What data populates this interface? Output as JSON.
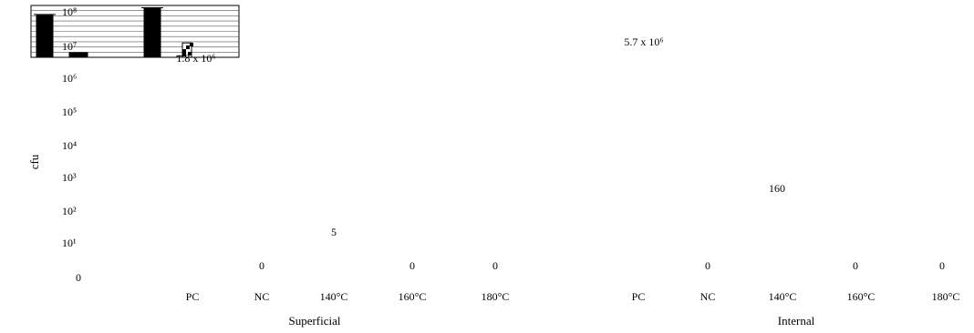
{
  "chart_data": {
    "type": "bar",
    "scale": "log",
    "ylabel": "cfu",
    "yticks": [
      "0",
      "10¹",
      "10²",
      "10³",
      "10⁴",
      "10⁵",
      "10⁶",
      "10⁷",
      "10⁸"
    ],
    "groups": [
      {
        "name": "Superficial",
        "categories": [
          "PC",
          "NC",
          "140°C",
          "160°C",
          "180°C"
        ]
      },
      {
        "name": "Internal",
        "categories": [
          "PC",
          "NC",
          "140°C",
          "160°C",
          "180°C"
        ]
      }
    ],
    "bars": [
      {
        "group": "Superficial",
        "category": "PC",
        "value": 66000000,
        "fill": "black"
      },
      {
        "group": "Superficial",
        "category": "NC",
        "value": 0,
        "fill": "black"
      },
      {
        "group": "Superficial",
        "category": "140°C",
        "value": 1800000,
        "fill": "white"
      },
      {
        "group": "Internal",
        "category": "PC",
        "value": 120000000,
        "fill": "black"
      },
      {
        "group": "Internal",
        "category": "NC",
        "value": 0,
        "fill": "black"
      },
      {
        "group": "Internal",
        "category": "140°C",
        "value": 5700000,
        "fill": "white"
      }
    ],
    "data_labels": [
      {
        "text": "0",
        "group": "Superficial",
        "category": "NC"
      },
      {
        "text": "5",
        "group": "Superficial",
        "category": "140°C"
      },
      {
        "text": "0",
        "group": "Superficial",
        "category": "160°C"
      },
      {
        "text": "0",
        "group": "Superficial",
        "category": "180°C"
      },
      {
        "text": "1.8 x 10⁶",
        "group": "Superficial",
        "category": "140°C"
      },
      {
        "text": "0",
        "group": "Internal",
        "category": "NC"
      },
      {
        "text": "160",
        "group": "Internal",
        "category": "140°C"
      },
      {
        "text": "0",
        "group": "Internal",
        "category": "160°C"
      },
      {
        "text": "0",
        "group": "Internal",
        "category": "180°C"
      },
      {
        "text": "5.7 x 10⁶",
        "group": "Internal",
        "category": "140°C"
      }
    ]
  }
}
